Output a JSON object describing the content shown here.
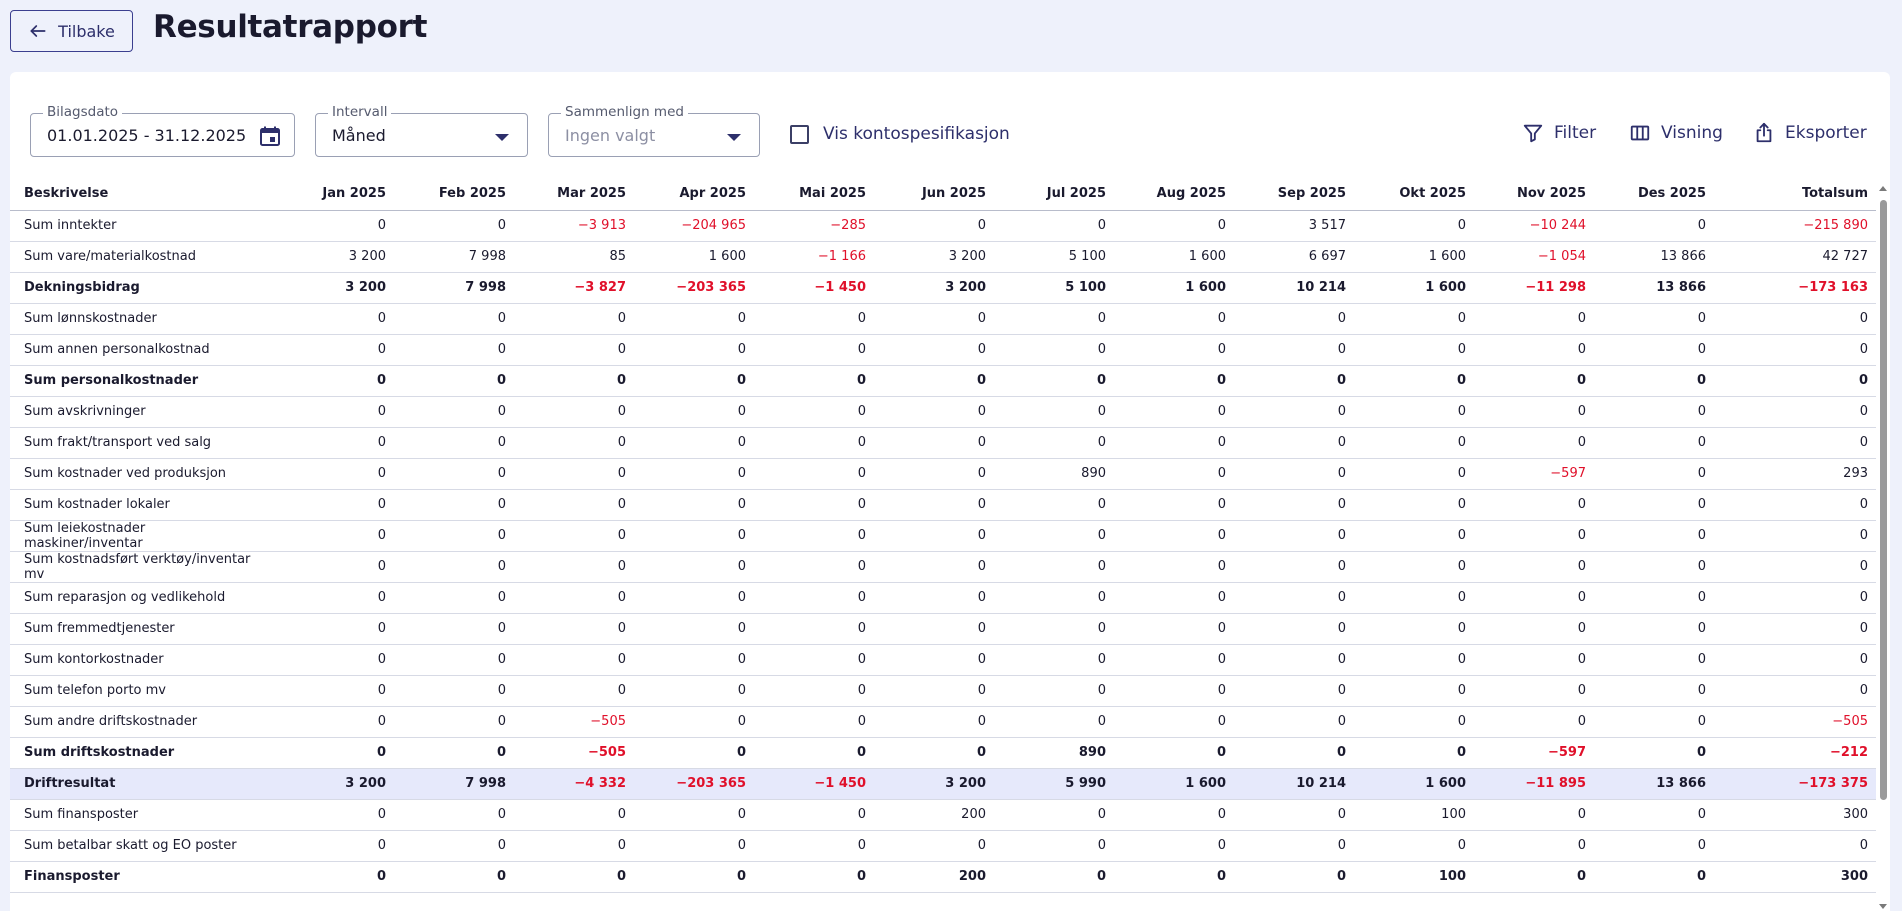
{
  "header": {
    "back_label": "Tilbake",
    "title": "Resultatrapport"
  },
  "filters": {
    "date": {
      "label": "Bilagsdato",
      "value": "01.01.2025 - 31.12.2025"
    },
    "interval": {
      "label": "Intervall",
      "value": "Måned"
    },
    "compare": {
      "label": "Sammenlign med",
      "placeholder": "Ingen valgt"
    },
    "account_spec": {
      "label": "Vis kontospesifikasjon",
      "checked": false
    }
  },
  "toolbar": {
    "filter_label": "Filter",
    "view_label": "Visning",
    "export_label": "Eksporter"
  },
  "colors": {
    "accent": "#2d2f6b",
    "negative": "#e0102a",
    "highlight_row": "#e6e9fb",
    "page_bg": "#eef1fb"
  },
  "table": {
    "columns": [
      "Beskrivelse",
      "Jan 2025",
      "Feb 2025",
      "Mar 2025",
      "Apr 2025",
      "Mai 2025",
      "Jun 2025",
      "Jul 2025",
      "Aug 2025",
      "Sep 2025",
      "Okt 2025",
      "Nov 2025",
      "Des 2025",
      "Totalsum"
    ],
    "rows": [
      {
        "label": "Sum inntekter",
        "style": "normal",
        "values": [
          "0",
          "0",
          "−3 913",
          "−204 965",
          "−285",
          "0",
          "0",
          "0",
          "3 517",
          "0",
          "−10 244",
          "0",
          "−215 890"
        ]
      },
      {
        "label": "Sum vare/materialkostnad",
        "style": "normal",
        "values": [
          "3 200",
          "7 998",
          "85",
          "1 600",
          "−1 166",
          "3 200",
          "5 100",
          "1 600",
          "6 697",
          "1 600",
          "−1 054",
          "13 866",
          "42 727"
        ]
      },
      {
        "label": "Dekningsbidrag",
        "style": "bold",
        "values": [
          "3 200",
          "7 998",
          "−3 827",
          "−203 365",
          "−1 450",
          "3 200",
          "5 100",
          "1 600",
          "10 214",
          "1 600",
          "−11 298",
          "13 866",
          "−173 163"
        ]
      },
      {
        "label": "Sum lønnskostnader",
        "style": "normal",
        "values": [
          "0",
          "0",
          "0",
          "0",
          "0",
          "0",
          "0",
          "0",
          "0",
          "0",
          "0",
          "0",
          "0"
        ]
      },
      {
        "label": "Sum annen personalkostnad",
        "style": "normal",
        "values": [
          "0",
          "0",
          "0",
          "0",
          "0",
          "0",
          "0",
          "0",
          "0",
          "0",
          "0",
          "0",
          "0"
        ]
      },
      {
        "label": "Sum personalkostnader",
        "style": "bold",
        "values": [
          "0",
          "0",
          "0",
          "0",
          "0",
          "0",
          "0",
          "0",
          "0",
          "0",
          "0",
          "0",
          "0"
        ]
      },
      {
        "label": "Sum avskrivninger",
        "style": "normal",
        "values": [
          "0",
          "0",
          "0",
          "0",
          "0",
          "0",
          "0",
          "0",
          "0",
          "0",
          "0",
          "0",
          "0"
        ]
      },
      {
        "label": "Sum frakt/transport ved salg",
        "style": "normal",
        "values": [
          "0",
          "0",
          "0",
          "0",
          "0",
          "0",
          "0",
          "0",
          "0",
          "0",
          "0",
          "0",
          "0"
        ]
      },
      {
        "label": "Sum kostnader ved produksjon",
        "style": "normal",
        "values": [
          "0",
          "0",
          "0",
          "0",
          "0",
          "0",
          "890",
          "0",
          "0",
          "0",
          "−597",
          "0",
          "293"
        ]
      },
      {
        "label": "Sum kostnader lokaler",
        "style": "normal",
        "values": [
          "0",
          "0",
          "0",
          "0",
          "0",
          "0",
          "0",
          "0",
          "0",
          "0",
          "0",
          "0",
          "0"
        ]
      },
      {
        "label": "Sum leiekostnader maskiner/inventar",
        "style": "normal",
        "values": [
          "0",
          "0",
          "0",
          "0",
          "0",
          "0",
          "0",
          "0",
          "0",
          "0",
          "0",
          "0",
          "0"
        ]
      },
      {
        "label": "Sum kostnadsført verktøy/inventar mv",
        "style": "normal",
        "values": [
          "0",
          "0",
          "0",
          "0",
          "0",
          "0",
          "0",
          "0",
          "0",
          "0",
          "0",
          "0",
          "0"
        ]
      },
      {
        "label": "Sum reparasjon og vedlikehold",
        "style": "normal",
        "values": [
          "0",
          "0",
          "0",
          "0",
          "0",
          "0",
          "0",
          "0",
          "0",
          "0",
          "0",
          "0",
          "0"
        ]
      },
      {
        "label": "Sum fremmedtjenester",
        "style": "normal",
        "values": [
          "0",
          "0",
          "0",
          "0",
          "0",
          "0",
          "0",
          "0",
          "0",
          "0",
          "0",
          "0",
          "0"
        ]
      },
      {
        "label": "Sum kontorkostnader",
        "style": "normal",
        "values": [
          "0",
          "0",
          "0",
          "0",
          "0",
          "0",
          "0",
          "0",
          "0",
          "0",
          "0",
          "0",
          "0"
        ]
      },
      {
        "label": "Sum telefon porto mv",
        "style": "normal",
        "values": [
          "0",
          "0",
          "0",
          "0",
          "0",
          "0",
          "0",
          "0",
          "0",
          "0",
          "0",
          "0",
          "0"
        ]
      },
      {
        "label": "Sum andre driftskostnader",
        "style": "normal",
        "values": [
          "0",
          "0",
          "−505",
          "0",
          "0",
          "0",
          "0",
          "0",
          "0",
          "0",
          "0",
          "0",
          "−505"
        ]
      },
      {
        "label": "Sum driftskostnader",
        "style": "bold",
        "values": [
          "0",
          "0",
          "−505",
          "0",
          "0",
          "0",
          "890",
          "0",
          "0",
          "0",
          "−597",
          "0",
          "−212"
        ]
      },
      {
        "label": "Driftresultat",
        "style": "highlight",
        "values": [
          "3 200",
          "7 998",
          "−4 332",
          "−203 365",
          "−1 450",
          "3 200",
          "5 990",
          "1 600",
          "10 214",
          "1 600",
          "−11 895",
          "13 866",
          "−173 375"
        ]
      },
      {
        "label": "Sum finansposter",
        "style": "normal",
        "values": [
          "0",
          "0",
          "0",
          "0",
          "0",
          "200",
          "0",
          "0",
          "0",
          "100",
          "0",
          "0",
          "300"
        ]
      },
      {
        "label": "Sum betalbar skatt og EO poster",
        "style": "normal",
        "values": [
          "0",
          "0",
          "0",
          "0",
          "0",
          "0",
          "0",
          "0",
          "0",
          "0",
          "0",
          "0",
          "0"
        ]
      },
      {
        "label": "Finansposter",
        "style": "bold",
        "values": [
          "0",
          "0",
          "0",
          "0",
          "0",
          "200",
          "0",
          "0",
          "0",
          "100",
          "0",
          "0",
          "300"
        ]
      }
    ]
  }
}
